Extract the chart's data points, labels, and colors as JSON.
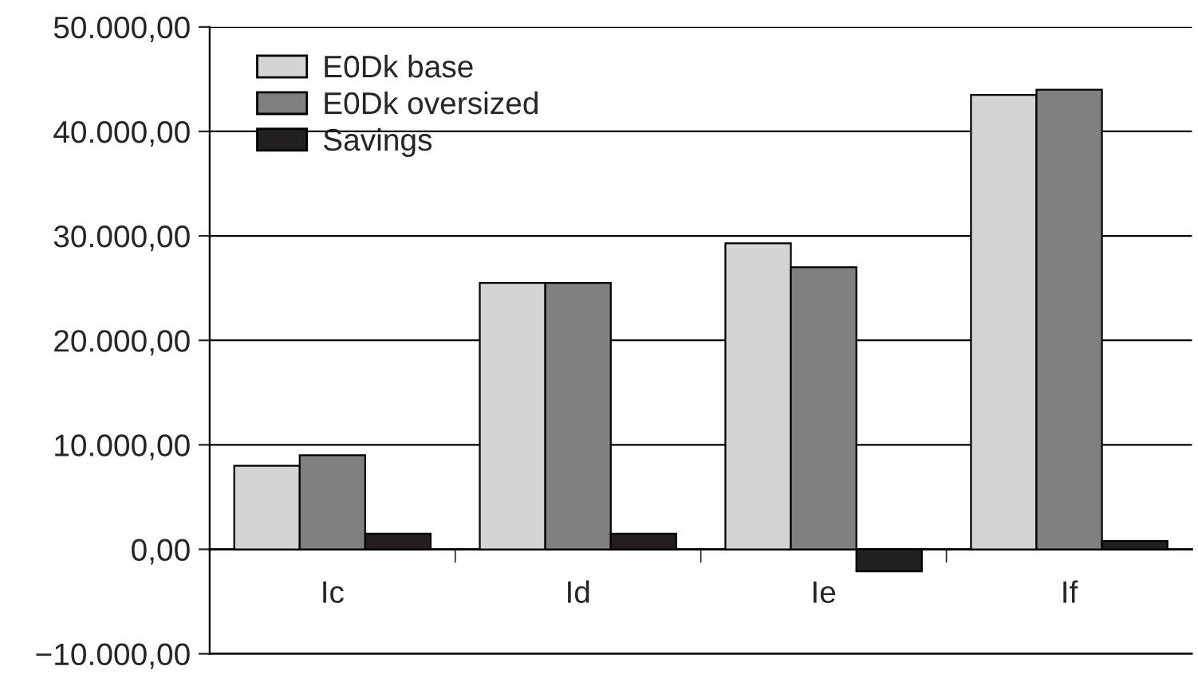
{
  "chart_data": {
    "type": "bar",
    "categories": [
      "Ic",
      "Id",
      "Ie",
      "If"
    ],
    "series": [
      {
        "name": "E0Dk base",
        "color": "#d4d4d4",
        "values": [
          8000,
          25500,
          29300,
          43500
        ]
      },
      {
        "name": "E0Dk oversized",
        "color": "#808080",
        "values": [
          9000,
          25500,
          27000,
          44000
        ]
      },
      {
        "name": "Savings",
        "color": "#231f20",
        "values": [
          1500,
          1500,
          -2100,
          800
        ]
      }
    ],
    "ylim": [
      -10000,
      50000
    ],
    "yticks": [
      {
        "value": -10000,
        "label": "−10.000,00"
      },
      {
        "value": 0,
        "label": "0,00"
      },
      {
        "value": 10000,
        "label": "10.000,00"
      },
      {
        "value": 20000,
        "label": "20.000,00"
      },
      {
        "value": 30000,
        "label": "30.000,00"
      },
      {
        "value": 40000,
        "label": "40.000,00"
      },
      {
        "value": 50000,
        "label": "50.000,00"
      }
    ],
    "grid": "y",
    "legend": "top left"
  }
}
